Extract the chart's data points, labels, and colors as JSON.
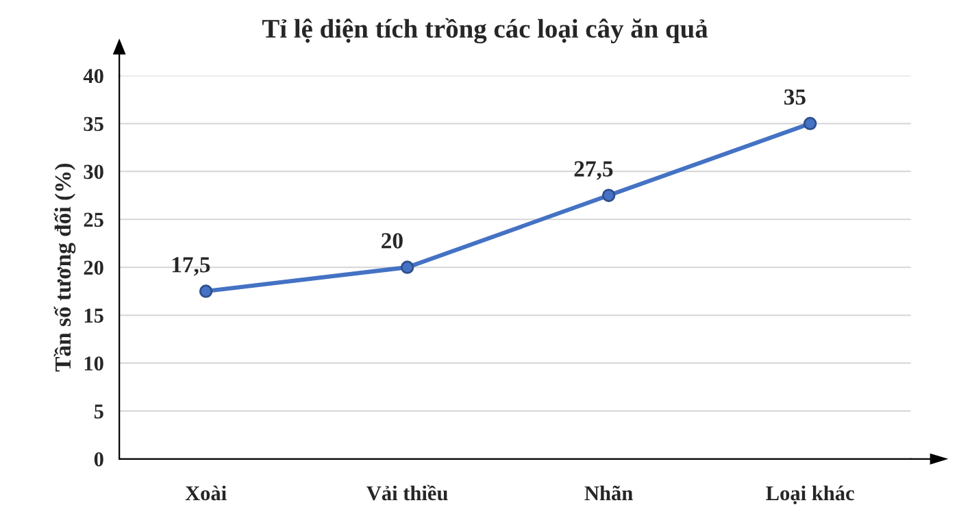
{
  "chart_data": {
    "type": "line",
    "title": "Tỉ lệ diện tích trồng các loại cây ăn quả",
    "ylabel": "Tần số tương đối (%)",
    "categories": [
      "Xoài",
      "Vải thiều",
      "Nhãn",
      "Loại khác"
    ],
    "series": [
      {
        "color": "#4472c4",
        "values": [
          17.5,
          20,
          27.5,
          35
        ],
        "value_labels": [
          "17,5",
          "20",
          "27,5",
          "35"
        ]
      }
    ],
    "ylim": [
      0,
      40
    ],
    "yticks": [
      0,
      5,
      10,
      15,
      20,
      25,
      30,
      35,
      40
    ],
    "grid": "y",
    "marker": "circle",
    "line_style": "solid",
    "legend": false
  }
}
